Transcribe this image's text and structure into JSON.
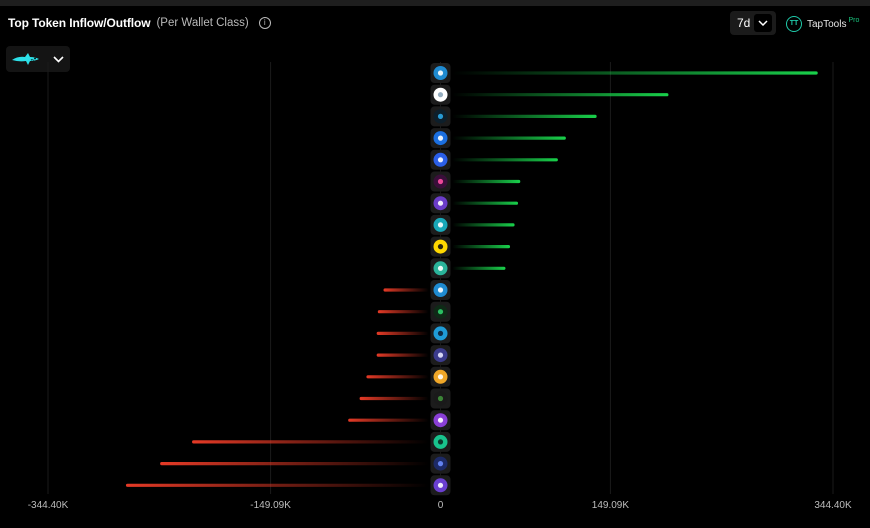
{
  "header": {
    "title": "Top Token Inflow/Outflow",
    "subtitle": "(Per Wallet Class)",
    "info_icon": "info-icon",
    "period": "7d",
    "brand_name": "TapTools",
    "brand_badge": "Pro"
  },
  "wallet_class": {
    "icon": "shark-icon",
    "accent": "#2de0e8"
  },
  "colors": {
    "inflow": "#19d14b",
    "outflow": "#e53a26",
    "background": "#000000"
  },
  "chart_data": {
    "type": "bar",
    "orientation": "horizontal",
    "xlim": [
      -344400,
      344400
    ],
    "x_ticks": [
      -344400,
      -149090,
      0,
      149090,
      344400
    ],
    "x_tick_labels": [
      "-344.40K",
      "-149.09K",
      "0",
      "149.09K",
      "344.40K"
    ],
    "grid": true,
    "rows": [
      {
        "icon": "blue-pixel-token-icon",
        "value": 331000
      },
      {
        "icon": "white-ring-token-icon",
        "value": 200000
      },
      {
        "icon": "blue-drop-token-icon",
        "value": 137000
      },
      {
        "icon": "blue-hexagon-token-icon",
        "value": 110000
      },
      {
        "icon": "blue-coin-token-icon",
        "value": 103000
      },
      {
        "icon": "pink-figure-token-icon",
        "value": 70000
      },
      {
        "icon": "purple-b-token-icon",
        "value": 68000
      },
      {
        "icon": "teal-s-token-icon",
        "value": 65000
      },
      {
        "icon": "yellow-w-token-icon",
        "value": 61000
      },
      {
        "icon": "teal-leaf-token-icon",
        "value": 57000
      },
      {
        "icon": "blue-pixel-token-icon",
        "value": -50000
      },
      {
        "icon": "green-d-token-icon",
        "value": -55000
      },
      {
        "icon": "blue-bear-token-icon",
        "value": -56000
      },
      {
        "icon": "purple-grid-token-icon",
        "value": -56000
      },
      {
        "icon": "gold-trophy-token-icon",
        "value": -65000
      },
      {
        "icon": "green-frog-token-icon",
        "value": -71000
      },
      {
        "icon": "purple-bubble-token-icon",
        "value": -81000
      },
      {
        "icon": "green-dollar-token-icon",
        "value": -218000
      },
      {
        "icon": "navy-cat-token-icon",
        "value": -246000
      },
      {
        "icon": "purple-dollar-token-icon",
        "value": -276000
      }
    ]
  }
}
